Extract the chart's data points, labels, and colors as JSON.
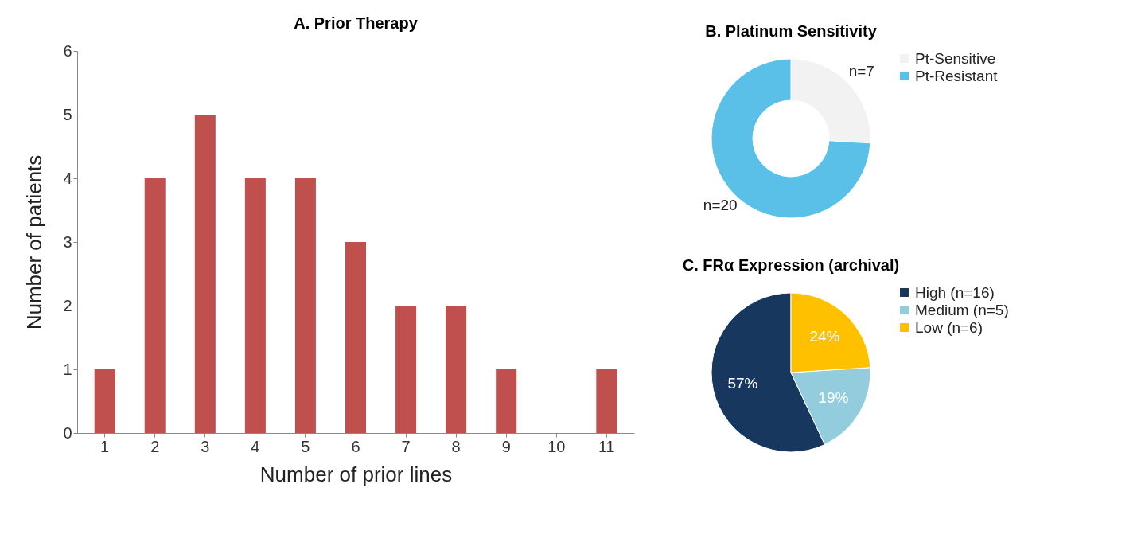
{
  "chart_data": [
    {
      "type": "bar",
      "title": "A. Prior Therapy",
      "xlabel": "Number of prior lines",
      "ylabel": "Number of patients",
      "categories": [
        "1",
        "2",
        "3",
        "4",
        "5",
        "6",
        "7",
        "8",
        "9",
        "10",
        "11"
      ],
      "values": [
        1,
        4,
        5,
        4,
        4,
        3,
        2,
        2,
        1,
        0,
        1
      ],
      "color": "#c0504d",
      "ylim": [
        0,
        6
      ],
      "yticks": [
        0,
        1,
        2,
        3,
        4,
        5,
        6
      ],
      "grid": false
    },
    {
      "type": "donut",
      "title": "B. Platinum Sensitivity",
      "categories": [
        "Pt-Sensitive",
        "Pt-Resistant"
      ],
      "values": [
        7,
        20
      ],
      "colors": [
        "#f2f2f2",
        "#5bc0e8"
      ],
      "value_labels": [
        "n=7",
        "n=20"
      ],
      "legend": "right"
    },
    {
      "type": "pie",
      "title": "C. FRα Expression (archival)",
      "categories": [
        "High (n=16)",
        "Medium (n=5)",
        "Low (n=6)"
      ],
      "values": [
        57,
        19,
        24
      ],
      "colors": [
        "#17375e",
        "#93cddd",
        "#ffc000"
      ],
      "value_labels": [
        "57%",
        "19%",
        "24%"
      ],
      "legend": "right"
    }
  ]
}
